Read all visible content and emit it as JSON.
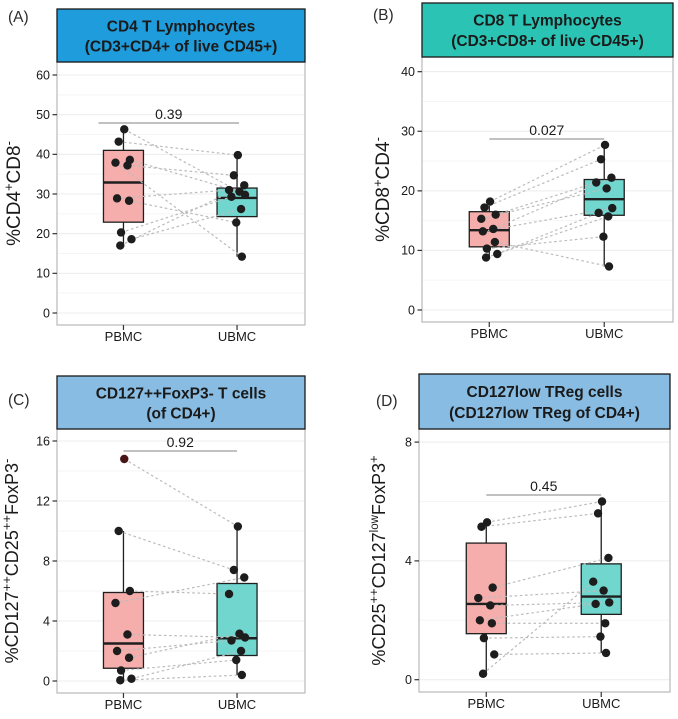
{
  "figure_name": "paired-boxplot-quad-figure",
  "categories_shared": [
    "PBMC",
    "UBMC"
  ],
  "colors": {
    "pbmc_box_fill": "#F5AEAC",
    "ubmc_box_fill": "#70D6CE",
    "point": "#1d1d1d",
    "outlier_point": "#4A1515",
    "pair_line": "#BCBCBC",
    "bracket_line": "#9C9C9C",
    "panel_border": "#B9B9B9",
    "grid_major": "#ECECEC",
    "grid_minor": "#F5F5F5",
    "header_blue": "#1F9CDC",
    "header_teal": "#2BC4B4",
    "header_lightblue": "#88BCE2",
    "text": "#1a1a1a"
  },
  "chart_data": [
    {
      "type": "boxplot",
      "panel_id": "A",
      "panel_label": "(A)",
      "title_lines": [
        "CD4 T Lymphocytes",
        "(CD3+CD4+ of live CD45+)"
      ],
      "header_color": "#1F9CDC",
      "ylabel_segments": [
        [
          "%CD4",
          0
        ],
        [
          "+",
          1
        ],
        [
          "CD8",
          0
        ],
        [
          "-",
          1
        ]
      ],
      "ylabel_plain": "%CD4+CD8-",
      "categories": [
        "PBMC",
        "UBMC"
      ],
      "ylim": [
        0,
        62
      ],
      "yticks": [
        0,
        10,
        20,
        30,
        40,
        50,
        60
      ],
      "p_value": "0.39",
      "series": [
        {
          "name": "PBMC",
          "fill": "#F5AEAC",
          "box": {
            "q1": 22.9,
            "median": 32.9,
            "q3": 41.0,
            "whisker_low": 17.0,
            "whisker_high": 46.3
          },
          "points": [
            46.3,
            43.2,
            38.6,
            37.9,
            37.2,
            28.9,
            28.3,
            20.3,
            18.6,
            17.0
          ]
        },
        {
          "name": "UBMC",
          "fill": "#70D6CE",
          "box": {
            "q1": 24.3,
            "median": 29.0,
            "q3": 31.5,
            "whisker_low": 14.2,
            "whisker_high": 39.8
          },
          "points": [
            39.8,
            34.7,
            32.2,
            31.0,
            30.6,
            29.8,
            29.3,
            26.2,
            22.8,
            14.2
          ]
        }
      ],
      "pairs": [
        [
          0,
          5
        ],
        [
          1,
          0
        ],
        [
          2,
          4
        ],
        [
          3,
          9
        ],
        [
          4,
          1
        ],
        [
          5,
          3
        ],
        [
          6,
          8
        ],
        [
          7,
          6
        ],
        [
          8,
          7
        ],
        [
          9,
          2
        ]
      ]
    },
    {
      "type": "boxplot",
      "panel_id": "B",
      "panel_label": "(B)",
      "title_lines": [
        "CD8 T Lymphocytes",
        "(CD3+CD8+ of live CD45+)"
      ],
      "header_color": "#2BC4B4",
      "ylabel_segments": [
        [
          "%CD8",
          0
        ],
        [
          "+",
          1
        ],
        [
          "CD4",
          0
        ],
        [
          "-",
          1
        ]
      ],
      "ylabel_plain": "%CD8+CD4-",
      "categories": [
        "PBMC",
        "UBMC"
      ],
      "ylim": [
        0,
        42
      ],
      "yticks": [
        0,
        10,
        20,
        30,
        40
      ],
      "p_value": "0.027",
      "series": [
        {
          "name": "PBMC",
          "fill": "#F5AEAC",
          "box": {
            "q1": 10.6,
            "median": 13.4,
            "q3": 16.5,
            "whisker_low": 8.8,
            "whisker_high": 18.2
          },
          "points": [
            18.2,
            17.2,
            16.0,
            15.3,
            13.6,
            13.2,
            11.4,
            10.3,
            9.4,
            8.8
          ]
        },
        {
          "name": "UBMC",
          "fill": "#70D6CE",
          "box": {
            "q1": 15.9,
            "median": 18.6,
            "q3": 21.9,
            "whisker_low": 7.3,
            "whisker_high": 27.7
          },
          "points": [
            27.7,
            25.3,
            22.2,
            21.4,
            20.4,
            17.1,
            16.3,
            15.7,
            12.3,
            7.3
          ]
        }
      ],
      "pairs": [
        [
          0,
          0
        ],
        [
          1,
          1
        ],
        [
          2,
          3
        ],
        [
          3,
          4
        ],
        [
          4,
          2
        ],
        [
          5,
          5
        ],
        [
          6,
          9
        ],
        [
          7,
          8
        ],
        [
          8,
          6
        ],
        [
          9,
          7
        ]
      ]
    },
    {
      "type": "boxplot",
      "panel_id": "C",
      "panel_label": "(C)",
      "title_lines": [
        "CD127++FoxP3- T cells",
        "(of CD4+)"
      ],
      "header_color": "#88BCE2",
      "ylabel_segments": [
        [
          "%CD127",
          0
        ],
        [
          "++",
          1
        ],
        [
          "CD25",
          0
        ],
        [
          "++",
          1
        ],
        [
          "FoxP3",
          0
        ],
        [
          "-",
          1
        ]
      ],
      "ylabel_plain": "%CD127++CD25++FoxP3-",
      "categories": [
        "PBMC",
        "UBMC"
      ],
      "ylim": [
        0,
        16.6
      ],
      "yticks": [
        0,
        4,
        8,
        12,
        16
      ],
      "p_value": "0.92",
      "series": [
        {
          "name": "PBMC",
          "fill": "#F5AEAC",
          "box": {
            "q1": 0.85,
            "median": 2.5,
            "q3": 5.9,
            "whisker_low": 0.05,
            "whisker_high": 10.0
          },
          "points": [
            14.8,
            10.0,
            6.0,
            5.2,
            3.1,
            2.0,
            1.55,
            0.7,
            0.15,
            0.05
          ]
        },
        {
          "name": "UBMC",
          "fill": "#70D6CE",
          "box": {
            "q1": 1.7,
            "median": 2.85,
            "q3": 6.5,
            "whisker_low": 0.4,
            "whisker_high": 10.3
          },
          "points": [
            10.3,
            7.4,
            6.9,
            5.8,
            3.15,
            2.9,
            2.7,
            2.0,
            1.4,
            0.4
          ]
        }
      ],
      "pairs": [
        [
          0,
          0
        ],
        [
          1,
          1
        ],
        [
          2,
          3
        ],
        [
          3,
          2
        ],
        [
          4,
          5
        ],
        [
          5,
          6
        ],
        [
          6,
          4
        ],
        [
          7,
          8
        ],
        [
          8,
          7
        ],
        [
          9,
          9
        ]
      ],
      "value_colors": {
        "0": {
          "0": "#4A1515"
        }
      }
    },
    {
      "type": "boxplot",
      "panel_id": "D",
      "panel_label": "(D)",
      "title_lines": [
        "CD127low TReg cells",
        "(CD127low TReg of CD4+)"
      ],
      "header_color": "#88BCE2",
      "ylabel_segments": [
        [
          "%CD25",
          0
        ],
        [
          "++",
          1
        ],
        [
          "CD127",
          0
        ],
        [
          "low",
          1
        ],
        [
          "FoxP3",
          0
        ],
        [
          "+",
          1
        ]
      ],
      "ylabel_plain": "%CD25++CD127lowFoxP3+",
      "categories": [
        "PBMC",
        "UBMC"
      ],
      "ylim": [
        0,
        8.4
      ],
      "yticks": [
        0,
        4,
        8
      ],
      "p_value": "0.45",
      "series": [
        {
          "name": "PBMC",
          "fill": "#F5AEAC",
          "box": {
            "q1": 1.55,
            "median": 2.55,
            "q3": 4.6,
            "whisker_low": 0.2,
            "whisker_high": 5.3
          },
          "points": [
            5.3,
            5.15,
            3.1,
            2.75,
            2.5,
            2.0,
            1.9,
            1.4,
            0.85,
            0.2
          ]
        },
        {
          "name": "UBMC",
          "fill": "#70D6CE",
          "box": {
            "q1": 2.2,
            "median": 2.8,
            "q3": 3.9,
            "whisker_low": 0.9,
            "whisker_high": 6.0
          },
          "points": [
            6.0,
            5.6,
            4.1,
            3.3,
            3.0,
            2.6,
            2.55,
            1.9,
            1.45,
            0.9
          ]
        }
      ],
      "pairs": [
        [
          0,
          0
        ],
        [
          1,
          1
        ],
        [
          2,
          2
        ],
        [
          3,
          4
        ],
        [
          4,
          5
        ],
        [
          5,
          6
        ],
        [
          6,
          7
        ],
        [
          7,
          8
        ],
        [
          8,
          9
        ],
        [
          9,
          3
        ]
      ]
    }
  ]
}
